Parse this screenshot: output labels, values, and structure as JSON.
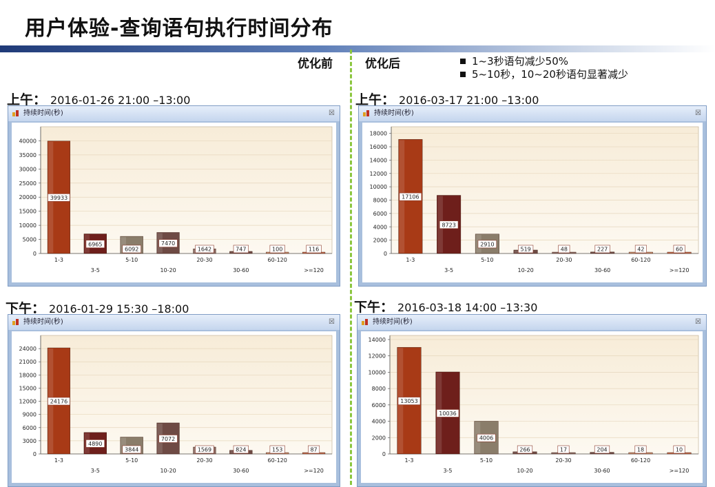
{
  "page": {
    "title": "用户体验-查询语句执行时间分布",
    "col_before": "优化前",
    "col_after": "优化后",
    "notes": [
      "1~3秒语句减少50%",
      "5~10秒，10~20秒语句显著减少"
    ]
  },
  "charts": [
    {
      "label_prefix": "上午：",
      "label_text": "2016-01-26 21:00 –13:00",
      "window_title": "持续时间(秒)",
      "close": "☒",
      "chart_data": {
        "type": "bar",
        "categories": [
          "1-3",
          "3-5",
          "5-10",
          "10-20",
          "20-30",
          "30-60",
          "60-120",
          ">=120"
        ],
        "values": [
          39933,
          6965,
          6092,
          7470,
          1642,
          747,
          100,
          116
        ],
        "ylim": [
          0,
          45000
        ],
        "yticks": [
          "0",
          "5000",
          "10000",
          "15000",
          "20000",
          "25000",
          "30000",
          "35000",
          "40000"
        ]
      }
    },
    {
      "label_prefix": "上午：",
      "label_text": "2016-03-17 21:00 –13:00",
      "window_title": "持续时间(秒)",
      "close": "☒",
      "chart_data": {
        "type": "bar",
        "categories": [
          "1-3",
          "3-5",
          "5-10",
          "10-20",
          "20-30",
          "30-60",
          "60-120",
          ">=120"
        ],
        "values": [
          17106,
          8723,
          2910,
          519,
          48,
          227,
          42,
          60
        ],
        "ylim": [
          0,
          19000
        ],
        "yticks": [
          "0",
          "2000",
          "4000",
          "6000",
          "8000",
          "10000",
          "12000",
          "14000",
          "16000",
          "18000"
        ]
      }
    },
    {
      "label_prefix": "下午：",
      "label_text": "2016-01-29 15:30 –18:00",
      "window_title": "持续时间(秒)",
      "close": "☒",
      "chart_data": {
        "type": "bar",
        "categories": [
          "1-3",
          "3-5",
          "5-10",
          "10-20",
          "20-30",
          "30-60",
          "60-120",
          ">=120"
        ],
        "values": [
          24176,
          4890,
          3844,
          7072,
          1569,
          824,
          153,
          87
        ],
        "ylim": [
          0,
          27000
        ],
        "yticks": [
          "0",
          "3000",
          "6000",
          "9000",
          "12000",
          "15000",
          "18000",
          "21000",
          "24000"
        ]
      }
    },
    {
      "label_prefix": "下午：",
      "label_text": "2016-03-18 14:00 –13:30",
      "window_title": "持续时间(秒)",
      "close": "☒",
      "chart_data": {
        "type": "bar",
        "categories": [
          "1-3",
          "3-5",
          "5-10",
          "10-20",
          "20-30",
          "30-60",
          "60-120",
          ">=120"
        ],
        "values": [
          13053,
          10036,
          4006,
          266,
          17,
          204,
          18,
          10
        ],
        "ylim": [
          0,
          14500
        ],
        "yticks": [
          "0",
          "2000",
          "4000",
          "6000",
          "8000",
          "10000",
          "12000",
          "14000"
        ]
      }
    }
  ],
  "colors": {
    "bars": [
      "#a83a16",
      "#6e1f1b",
      "#8a7d6a",
      "#6e4a44",
      "#8a6a62",
      "#6e4a44",
      "#c98a6a",
      "#c36a4a"
    ],
    "plot_bg_top": "#f7ecd8",
    "plot_bg_bottom": "#fdf9f1",
    "label_border": "#8a3a2a"
  }
}
